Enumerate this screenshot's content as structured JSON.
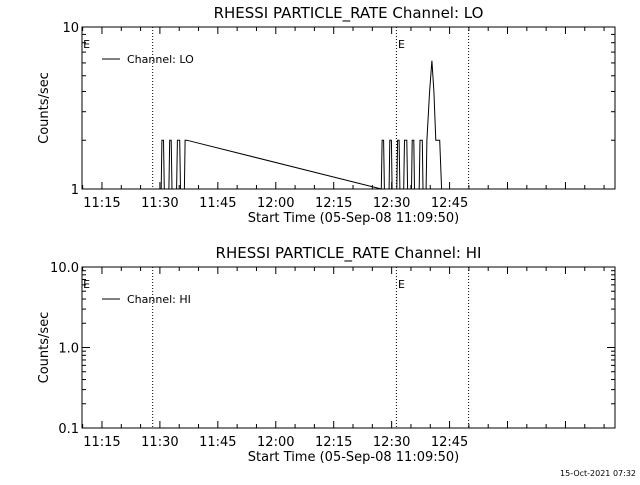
{
  "footer": {
    "timestamp": "15-Oct-2021 07:32"
  },
  "chart_data": [
    {
      "type": "line",
      "title": "RHESSI PARTICLE_RATE Channel: LO",
      "xlabel": "Start Time (05-Sep-08 11:09:50)",
      "ylabel": "Counts/sec",
      "yscale": "log",
      "ylim": [
        1,
        10
      ],
      "xlim_min": [
        0,
        138
      ],
      "xticks": [
        "11:15",
        "11:30",
        "11:45",
        "12:00",
        "12:15",
        "12:30",
        "12:45"
      ],
      "xticks_min": [
        5.17,
        20.17,
        35.17,
        50.17,
        65.17,
        80.17,
        95.17
      ],
      "yticks": [
        "1",
        "10"
      ],
      "ytick_values": [
        1,
        10
      ],
      "legend": {
        "label": "Channel: LO",
        "placement": "top-left"
      },
      "vlines_min": [
        18.3,
        81.4,
        100.1
      ],
      "markers": [
        {
          "label": "E",
          "x_min": 0.3
        },
        {
          "label": "E",
          "x_min": 81.8
        }
      ],
      "series": [
        {
          "x_min": [
            20.5,
            20.7,
            21.1,
            21.3,
            22.5,
            22.7,
            23.1,
            23.3,
            24.5,
            24.7,
            25.1,
            25.3,
            25.5,
            26.5,
            26.7,
            27.1,
            77.5,
            77.7,
            78.1,
            78.3,
            79.5,
            79.7,
            80.1,
            80.3,
            81.5,
            81.7,
            82.1,
            82.3,
            83.3,
            83.5,
            83.9,
            84.1,
            84.3,
            85.3,
            85.5,
            85.9,
            86.1,
            87.3,
            87.5,
            87.9,
            88.1,
            88.3,
            89.1,
            89.3,
            90.0,
            90.6,
            91.1,
            91.6,
            92.2,
            92.6,
            93.1,
            93.5
          ],
          "values": [
            1,
            2,
            2,
            1,
            1,
            2,
            2,
            1,
            1,
            2,
            2,
            2,
            1,
            1,
            2,
            2,
            1,
            2,
            2,
            1,
            1,
            2,
            2,
            1,
            1,
            2,
            2,
            1,
            1,
            2,
            2,
            2,
            1,
            1,
            2,
            2,
            1,
            1,
            2,
            2,
            2,
            1,
            1,
            2,
            4,
            6.2,
            4,
            2,
            2,
            2,
            1,
            1
          ]
        }
      ]
    },
    {
      "type": "line",
      "title": "RHESSI PARTICLE_RATE Channel: HI",
      "xlabel": "Start Time (05-Sep-08 11:09:50)",
      "ylabel": "Counts/sec",
      "yscale": "log",
      "ylim": [
        0.1,
        10
      ],
      "xlim_min": [
        0,
        138
      ],
      "xticks": [
        "11:15",
        "11:30",
        "11:45",
        "12:00",
        "12:15",
        "12:30",
        "12:45"
      ],
      "xticks_min": [
        5.17,
        20.17,
        35.17,
        50.17,
        65.17,
        80.17,
        95.17
      ],
      "yticks": [
        "0.1",
        "1.0",
        "10.0"
      ],
      "ytick_values": [
        0.1,
        1,
        10
      ],
      "legend": {
        "label": "Channel: HI",
        "placement": "top-left"
      },
      "vlines_min": [
        18.3,
        81.4,
        100.1
      ],
      "markers": [
        {
          "label": "E",
          "x_min": 0.3
        },
        {
          "label": "E",
          "x_min": 81.8
        }
      ],
      "series": [
        {
          "x_min": [],
          "values": []
        }
      ]
    }
  ]
}
